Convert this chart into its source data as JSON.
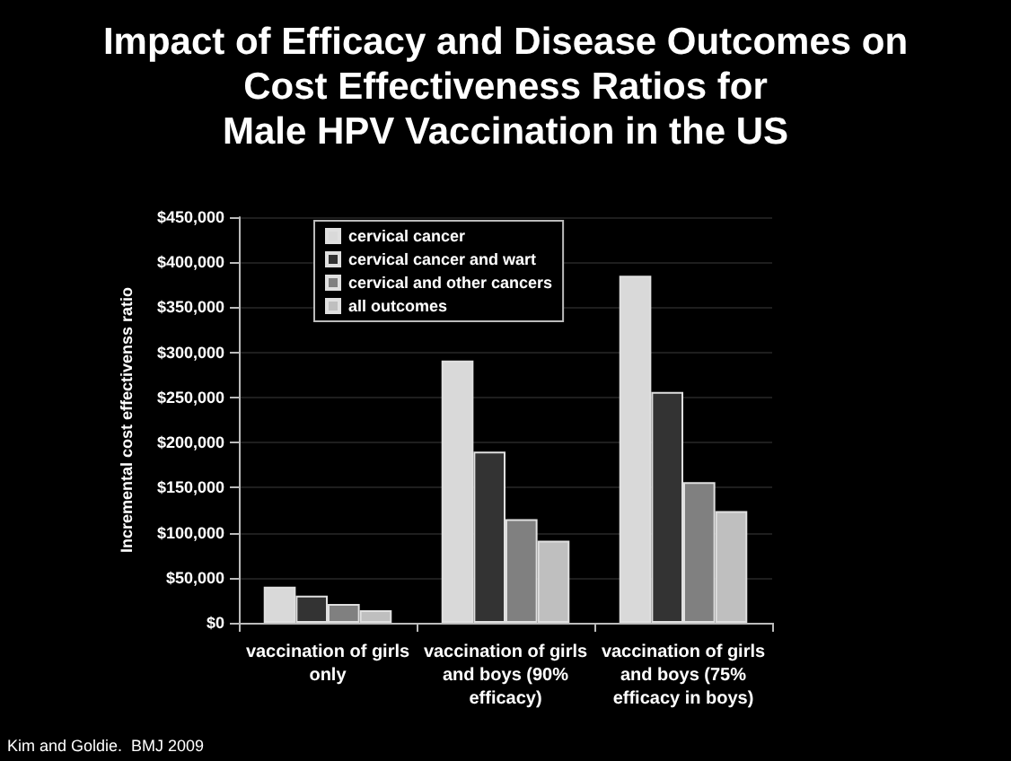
{
  "chart_data": {
    "type": "bar",
    "title": "Impact of Efficacy and Disease Outcomes on\nCost Effectiveness Ratios for\nMale HPV Vaccination in the US",
    "ylabel": "Incremental cost effectivenss ratio",
    "categories": [
      "vaccination of girls\nonly",
      "vaccination of girls\nand boys (90%\nefficacy)",
      "vaccination of girls\nand boys (75%\nefficacy in boys)"
    ],
    "series": [
      {
        "name": "cervical cancer",
        "color": "#d9d9d9",
        "values": [
          40000,
          291000,
          385000
        ]
      },
      {
        "name": "cervical cancer and wart",
        "color": "#333333",
        "values": [
          30000,
          190000,
          256000
        ]
      },
      {
        "name": "cervical and other cancers",
        "color": "#808080",
        "values": [
          21000,
          115000,
          156000
        ]
      },
      {
        "name": "all outcomes",
        "color": "#bfbfbf",
        "values": [
          14000,
          91000,
          124000
        ]
      }
    ],
    "ylim": [
      0,
      450000
    ],
    "yticks": [
      {
        "value": 0,
        "label": "$0"
      },
      {
        "value": 50000,
        "label": "$50,000"
      },
      {
        "value": 100000,
        "label": "$100,000"
      },
      {
        "value": 150000,
        "label": "$150,000"
      },
      {
        "value": 200000,
        "label": "$200,000"
      },
      {
        "value": 250000,
        "label": "$250,000"
      },
      {
        "value": 300000,
        "label": "$300,000"
      },
      {
        "value": 350000,
        "label": "$350,000"
      },
      {
        "value": 400000,
        "label": "$400,000"
      },
      {
        "value": 450000,
        "label": "$450,000"
      }
    ],
    "grid": "y",
    "legend": "top left",
    "annotations": [
      "Kim and Goldie.  BMJ 2009"
    ]
  }
}
